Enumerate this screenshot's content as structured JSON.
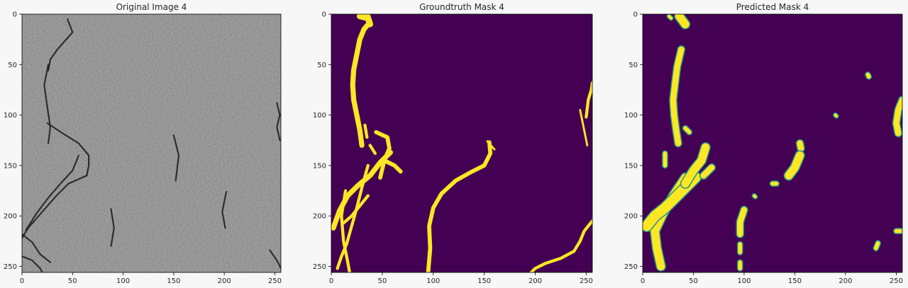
{
  "chart_data": [
    {
      "type": "heatmap",
      "title": "Original Image 4",
      "colormap": "gray",
      "xlim": [
        0,
        256
      ],
      "ylim": [
        256,
        0
      ],
      "x_ticks": [
        0,
        50,
        100,
        150,
        200,
        250
      ],
      "y_ticks": [
        0,
        50,
        100,
        150,
        200,
        250
      ],
      "xlabel": "",
      "ylabel": "",
      "dark_features": [
        {
          "points": [
            [
              45,
              5
            ],
            [
              50,
              18
            ],
            [
              35,
              35
            ],
            [
              28,
              45
            ],
            [
              26,
              56
            ]
          ]
        },
        {
          "points": [
            [
              26,
              50
            ],
            [
              22,
              70
            ],
            [
              25,
              92
            ],
            [
              28,
              112
            ],
            [
              26,
              128
            ]
          ]
        },
        {
          "points": [
            [
              25,
              108
            ],
            [
              40,
              118
            ],
            [
              56,
              128
            ],
            [
              66,
              140
            ],
            [
              66,
              150
            ],
            [
              64,
              160
            ]
          ]
        },
        {
          "points": [
            [
              64,
              160
            ],
            [
              46,
              168
            ],
            [
              34,
              180
            ],
            [
              20,
              196
            ],
            [
              6,
              212
            ],
            [
              0,
              222
            ]
          ]
        },
        {
          "points": [
            [
              56,
              140
            ],
            [
              50,
              155
            ],
            [
              38,
              168
            ],
            [
              26,
              182
            ],
            [
              14,
              198
            ],
            [
              4,
              214
            ]
          ]
        },
        {
          "points": [
            [
              0,
              240
            ],
            [
              10,
              244
            ],
            [
              18,
              252
            ],
            [
              20,
              256
            ]
          ]
        },
        {
          "points": [
            [
              0,
              218
            ],
            [
              10,
              226
            ],
            [
              18,
              238
            ],
            [
              28,
              246
            ]
          ]
        },
        {
          "points": [
            [
              252,
              88
            ],
            [
              255,
              100
            ],
            [
              252,
              112
            ],
            [
              255,
              125
            ]
          ]
        },
        {
          "points": [
            [
              150,
              120
            ],
            [
              155,
              140
            ],
            [
              152,
              165
            ]
          ]
        },
        {
          "points": [
            [
              202,
              176
            ],
            [
              198,
              196
            ],
            [
              201,
              212
            ]
          ]
        },
        {
          "points": [
            [
              245,
              234
            ],
            [
              252,
              244
            ],
            [
              256,
              252
            ]
          ]
        },
        {
          "points": [
            [
              88,
              193
            ],
            [
              91,
              212
            ],
            [
              88,
              230
            ]
          ]
        }
      ]
    },
    {
      "type": "heatmap",
      "title": "Groundtruth Mask 4",
      "colormap": "viridis",
      "background_color": "#440154",
      "mask_color": "#fde725",
      "edge_color": "#21918c",
      "xlim": [
        0,
        256
      ],
      "ylim": [
        256,
        0
      ],
      "x_ticks": [
        0,
        50,
        100,
        150,
        200,
        250
      ],
      "y_ticks": [
        0,
        50,
        100,
        150,
        200,
        250
      ],
      "xlabel": "",
      "ylabel": "",
      "mask_strokes": [
        {
          "w": 5,
          "points": [
            [
              36,
              2
            ],
            [
              38,
              8
            ],
            [
              32,
              15
            ],
            [
              28,
              25
            ],
            [
              25,
              40
            ],
            [
              22,
              55
            ],
            [
              21,
              70
            ],
            [
              22,
              85
            ],
            [
              25,
              100
            ],
            [
              28,
              115
            ],
            [
              30,
              130
            ]
          ]
        },
        {
          "w": 6,
          "points": [
            [
              28,
              2
            ],
            [
              36,
              4
            ],
            [
              38,
              10
            ]
          ]
        },
        {
          "w": 3,
          "points": [
            [
              33,
              110
            ],
            [
              35,
              122
            ]
          ]
        },
        {
          "w": 4,
          "points": [
            [
              44,
              117
            ],
            [
              55,
              122
            ],
            [
              57,
              133
            ],
            [
              52,
              145
            ],
            [
              48,
              162
            ]
          ]
        },
        {
          "w": 4,
          "points": [
            [
              52,
              145
            ],
            [
              62,
              150
            ],
            [
              68,
              156
            ]
          ]
        },
        {
          "w": 3,
          "points": [
            [
              38,
              130
            ],
            [
              43,
              138
            ]
          ]
        },
        {
          "w": 5,
          "points": [
            [
              58,
              137
            ],
            [
              48,
              147
            ],
            [
              38,
              160
            ],
            [
              26,
              170
            ],
            [
              16,
              180
            ],
            [
              8,
              195
            ],
            [
              2,
              212
            ]
          ]
        },
        {
          "w": 3,
          "points": [
            [
              36,
              150
            ],
            [
              30,
              172
            ],
            [
              25,
              192
            ],
            [
              20,
              210
            ],
            [
              15,
              228
            ],
            [
              10,
              240
            ],
            [
              6,
              252
            ]
          ]
        },
        {
          "w": 3,
          "points": [
            [
              36,
              180
            ],
            [
              28,
              190
            ],
            [
              20,
              200
            ],
            [
              12,
              207
            ]
          ]
        },
        {
          "w": 3,
          "points": [
            [
              14,
              175
            ],
            [
              10,
              200
            ],
            [
              12,
              225
            ],
            [
              16,
              245
            ],
            [
              18,
              256
            ]
          ]
        },
        {
          "w": 4,
          "points": [
            [
              155,
              127
            ],
            [
              156,
              138
            ],
            [
              150,
              150
            ],
            [
              138,
              156
            ],
            [
              122,
              165
            ],
            [
              108,
              178
            ],
            [
              100,
              192
            ],
            [
              96,
              210
            ],
            [
              97,
              232
            ],
            [
              95,
              256
            ]
          ]
        },
        {
          "w": 2,
          "points": [
            [
              153,
              126
            ],
            [
              160,
              134
            ]
          ]
        },
        {
          "w": 3,
          "points": [
            [
              256,
              205
            ],
            [
              248,
              215
            ],
            [
              244,
              225
            ],
            [
              238,
              235
            ],
            [
              225,
              242
            ],
            [
              210,
              247
            ],
            [
              200,
              252
            ],
            [
              196,
              256
            ]
          ]
        },
        {
          "w": 3,
          "points": [
            [
              250,
              102
            ],
            [
              252,
              85
            ],
            [
              255,
              75
            ],
            [
              256,
              68
            ]
          ]
        },
        {
          "w": 2,
          "points": [
            [
              244,
              95
            ],
            [
              246,
              105
            ],
            [
              249,
              120
            ],
            [
              251,
              130
            ]
          ]
        }
      ]
    },
    {
      "type": "heatmap",
      "title": "Predicted Mask 4",
      "colormap": "viridis",
      "background_color": "#440154",
      "mask_color": "#fde725",
      "edge_color": "#21918c",
      "xlim": [
        0,
        256
      ],
      "ylim": [
        256,
        0
      ],
      "x_ticks": [
        0,
        50,
        100,
        150,
        200,
        250
      ],
      "y_ticks": [
        0,
        50,
        100,
        150,
        200,
        250
      ],
      "xlabel": "",
      "ylabel": "",
      "mask_strokes": [
        {
          "w": 8,
          "points": [
            [
              36,
              2
            ],
            [
              42,
              10
            ]
          ]
        },
        {
          "w": 6,
          "points": [
            [
              38,
              35
            ],
            [
              34,
              52
            ],
            [
              32,
              68
            ],
            [
              30,
              85
            ],
            [
              31,
              100
            ],
            [
              33,
              115
            ],
            [
              35,
              128
            ]
          ]
        },
        {
          "w": 8,
          "points": [
            [
              42,
              162
            ],
            [
              30,
              180
            ],
            [
              20,
              198
            ],
            [
              12,
              215
            ],
            [
              14,
              232
            ],
            [
              18,
              250
            ]
          ]
        },
        {
          "w": 10,
          "points": [
            [
              52,
              162
            ],
            [
              42,
              172
            ],
            [
              32,
              182
            ],
            [
              22,
              192
            ],
            [
              12,
              200
            ],
            [
              4,
              210
            ]
          ]
        },
        {
          "w": 8,
          "points": [
            [
              62,
              132
            ],
            [
              58,
              145
            ],
            [
              50,
              155
            ],
            [
              42,
              168
            ]
          ]
        },
        {
          "w": 6,
          "points": [
            [
              68,
              152
            ],
            [
              60,
              160
            ]
          ]
        },
        {
          "w": 4,
          "points": [
            [
              42,
              113
            ],
            [
              46,
              117
            ]
          ]
        },
        {
          "w": 4,
          "points": [
            [
              22,
              138
            ],
            [
              22,
              150
            ]
          ]
        },
        {
          "w": 6,
          "points": [
            [
              100,
              194
            ],
            [
              96,
              206
            ],
            [
              96,
              218
            ]
          ]
        },
        {
          "w": 4,
          "points": [
            [
              96,
              228
            ],
            [
              96,
              236
            ]
          ]
        },
        {
          "w": 4,
          "points": [
            [
              96,
              246
            ],
            [
              96,
              252
            ]
          ]
        },
        {
          "w": 6,
          "points": [
            [
              155,
              128
            ],
            [
              156,
              133
            ]
          ]
        },
        {
          "w": 8,
          "points": [
            [
              155,
              140
            ],
            [
              150,
              152
            ],
            [
              144,
              160
            ]
          ]
        },
        {
          "w": 4,
          "points": [
            [
              128,
              168
            ],
            [
              132,
              168
            ]
          ]
        },
        {
          "w": 6,
          "points": [
            [
              256,
              85
            ],
            [
              252,
              95
            ],
            [
              250,
              108
            ],
            [
              252,
              118
            ]
          ]
        },
        {
          "w": 4,
          "points": [
            [
              250,
              215
            ],
            [
              256,
              215
            ]
          ]
        },
        {
          "w": 4,
          "points": [
            [
              232,
              227
            ],
            [
              230,
              232
            ]
          ]
        },
        {
          "w": 4,
          "points": [
            [
              222,
              60
            ],
            [
              223,
              62
            ]
          ]
        },
        {
          "w": 3,
          "points": [
            [
              26,
              2
            ],
            [
              28,
              4
            ]
          ]
        },
        {
          "w": 3,
          "points": [
            [
              110,
              180
            ],
            [
              111,
              181
            ]
          ]
        },
        {
          "w": 3,
          "points": [
            [
              190,
              100
            ],
            [
              191,
              101
            ]
          ]
        }
      ]
    }
  ]
}
